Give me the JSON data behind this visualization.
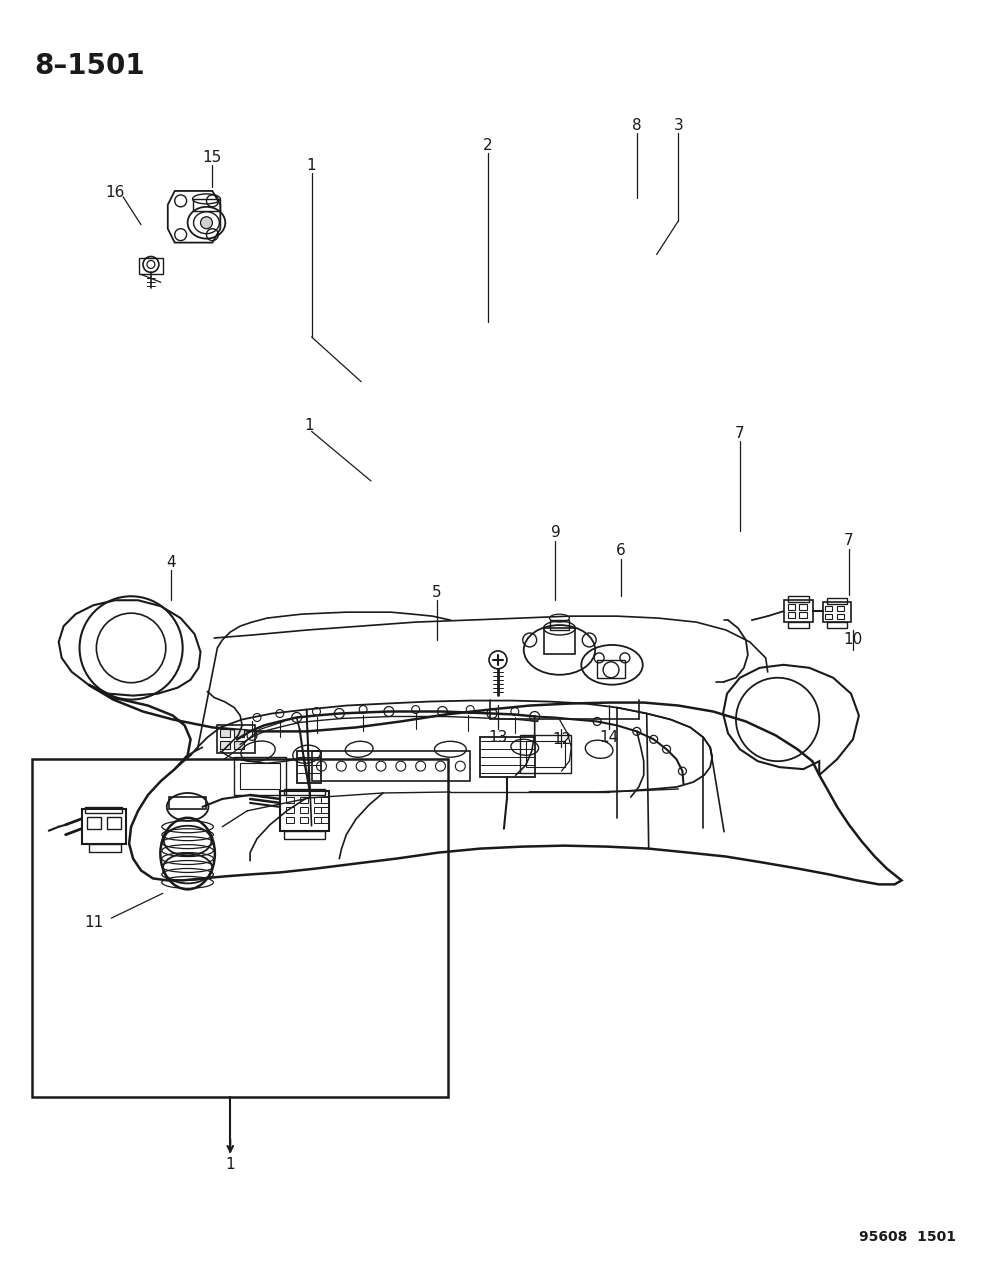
{
  "title": "8–1501",
  "footer": "95608  1501",
  "bg_color": "#ffffff",
  "line_color": "#1a1a1a",
  "title_fontsize": 20,
  "footer_fontsize": 10,
  "fig_width": 9.91,
  "fig_height": 12.75,
  "dpi": 100
}
